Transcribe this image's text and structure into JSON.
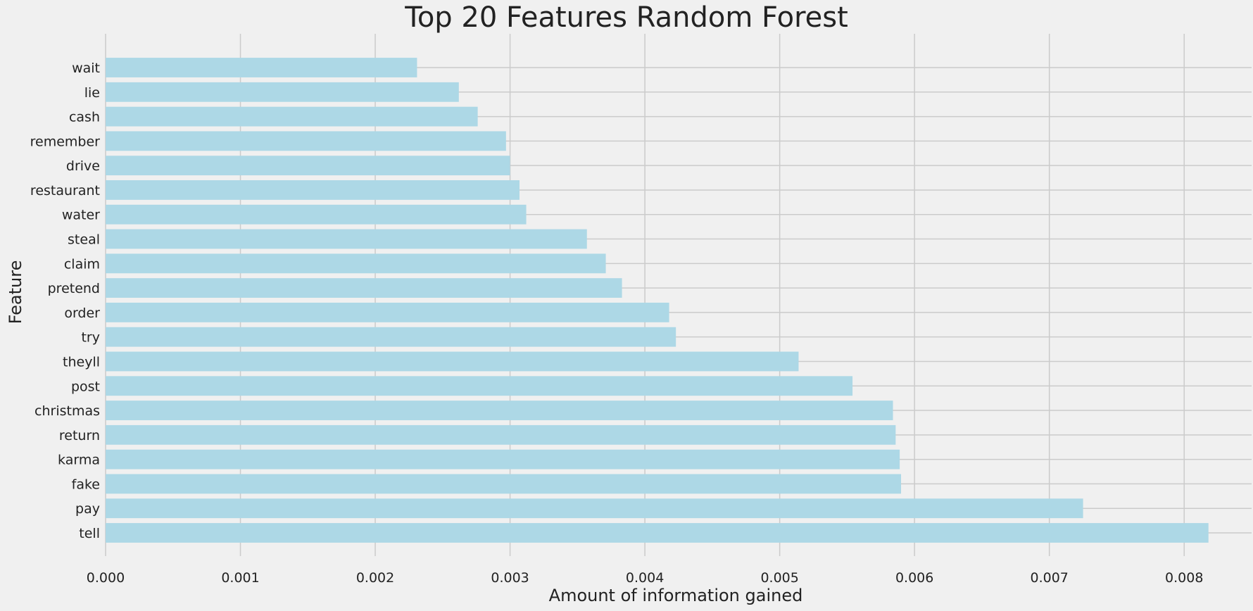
{
  "chart_data": {
    "type": "bar",
    "orientation": "horizontal",
    "title": "Top 20 Features Random Forest",
    "xlabel": "Amount of information gained",
    "ylabel": "Feature",
    "xlim": [
      0,
      0.0085
    ],
    "xticks": [
      "0.000",
      "0.001",
      "0.002",
      "0.003",
      "0.004",
      "0.005",
      "0.006",
      "0.007",
      "0.008"
    ],
    "grid": true,
    "bar_color": "#add8e6",
    "categories": [
      "wait",
      "lie",
      "cash",
      "remember",
      "drive",
      "restaurant",
      "water",
      "steal",
      "claim",
      "pretend",
      "order",
      "try",
      "theyll",
      "post",
      "christmas",
      "return",
      "karma",
      "fake",
      "pay",
      "tell"
    ],
    "values": [
      0.00231,
      0.00262,
      0.00276,
      0.00297,
      0.003,
      0.00307,
      0.00312,
      0.00357,
      0.00371,
      0.00383,
      0.00418,
      0.00423,
      0.00514,
      0.00554,
      0.00584,
      0.00586,
      0.00589,
      0.0059,
      0.00725,
      0.00818
    ]
  },
  "colors": {
    "background": "#f0f0f0",
    "grid": "#cbcbcb",
    "bar": "#add8e6",
    "text": "#222222"
  }
}
